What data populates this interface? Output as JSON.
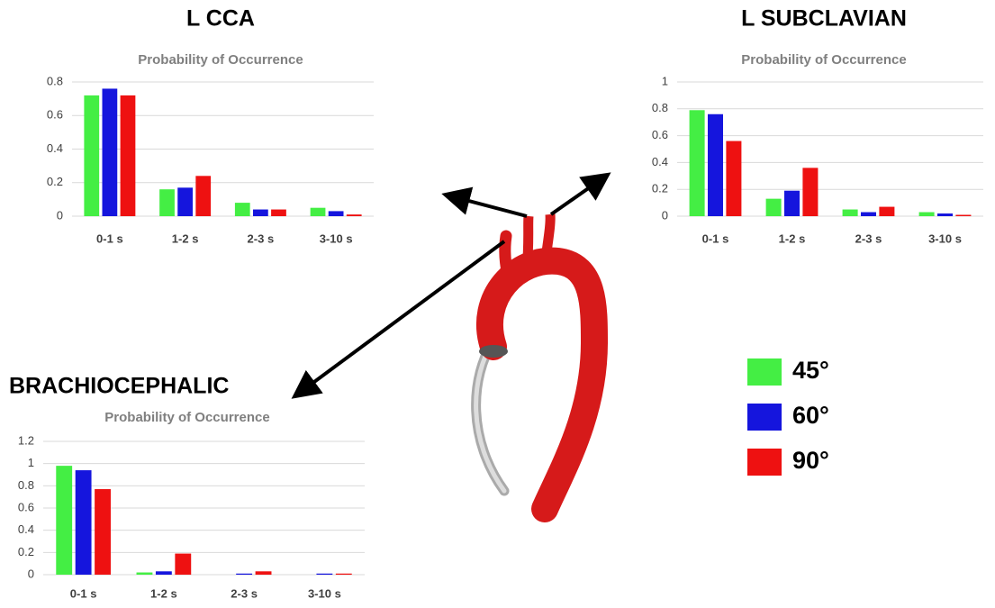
{
  "chart_data": [
    {
      "type": "bar",
      "title": "L CCA",
      "subtitle": "Probability of Occurrence",
      "categories": [
        "0-1 s",
        "1-2 s",
        "2-3 s",
        "3-10 s"
      ],
      "series": [
        {
          "name": "45°",
          "color": "#44ee44",
          "values": [
            0.72,
            0.16,
            0.08,
            0.05
          ]
        },
        {
          "name": "60°",
          "color": "#1515dd",
          "values": [
            0.76,
            0.17,
            0.04,
            0.03
          ]
        },
        {
          "name": "90°",
          "color": "#ee1111",
          "values": [
            0.72,
            0.24,
            0.04,
            0.01
          ]
        }
      ],
      "ylim": [
        0,
        0.8
      ],
      "yticks": [
        0,
        0.2,
        0.4,
        0.6,
        0.8
      ],
      "grid": true
    },
    {
      "type": "bar",
      "title": "L SUBCLAVIAN",
      "subtitle": "Probability of Occurrence",
      "categories": [
        "0-1 s",
        "1-2 s",
        "2-3 s",
        "3-10 s"
      ],
      "series": [
        {
          "name": "45°",
          "color": "#44ee44",
          "values": [
            0.79,
            0.13,
            0.05,
            0.03
          ]
        },
        {
          "name": "60°",
          "color": "#1515dd",
          "values": [
            0.76,
            0.19,
            0.03,
            0.02
          ]
        },
        {
          "name": "90°",
          "color": "#ee1111",
          "values": [
            0.56,
            0.36,
            0.07,
            0.01
          ]
        }
      ],
      "ylim": [
        0,
        1
      ],
      "yticks": [
        0,
        0.2,
        0.4,
        0.6,
        0.8,
        1
      ],
      "grid": true
    },
    {
      "type": "bar",
      "title": "BRACHIOCEPHALIC",
      "subtitle": "Probability of Occurrence",
      "categories": [
        "0-1 s",
        "1-2 s",
        "2-3 s",
        "3-10 s"
      ],
      "series": [
        {
          "name": "45°",
          "color": "#44ee44",
          "values": [
            0.98,
            0.02,
            0,
            0
          ]
        },
        {
          "name": "60°",
          "color": "#1515dd",
          "values": [
            0.94,
            0.03,
            0.01,
            0.01
          ]
        },
        {
          "name": "90°",
          "color": "#ee1111",
          "values": [
            0.77,
            0.19,
            0.03,
            0.01
          ]
        }
      ],
      "ylim": [
        0,
        1.2
      ],
      "yticks": [
        0,
        0.2,
        0.4,
        0.6,
        0.8,
        1,
        1.2
      ],
      "grid": true
    }
  ]
}
